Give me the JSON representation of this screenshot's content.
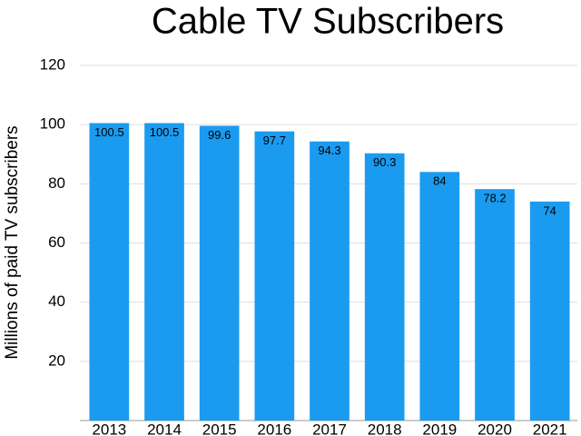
{
  "chart_data": {
    "type": "bar",
    "title": "Cable TV Subscribers",
    "y_label": "Millions of paid TV subscribers",
    "categories": [
      "2013",
      "2014",
      "2015",
      "2016",
      "2017",
      "2018",
      "2019",
      "2020",
      "2021"
    ],
    "values": [
      100.5,
      100.5,
      99.6,
      97.7,
      94.3,
      90.3,
      84,
      78.2,
      74
    ],
    "color": "#1a9bf0",
    "ylim": [
      0,
      120
    ],
    "yticks": [
      20,
      40,
      60,
      80,
      100,
      120
    ],
    "grid": true
  }
}
